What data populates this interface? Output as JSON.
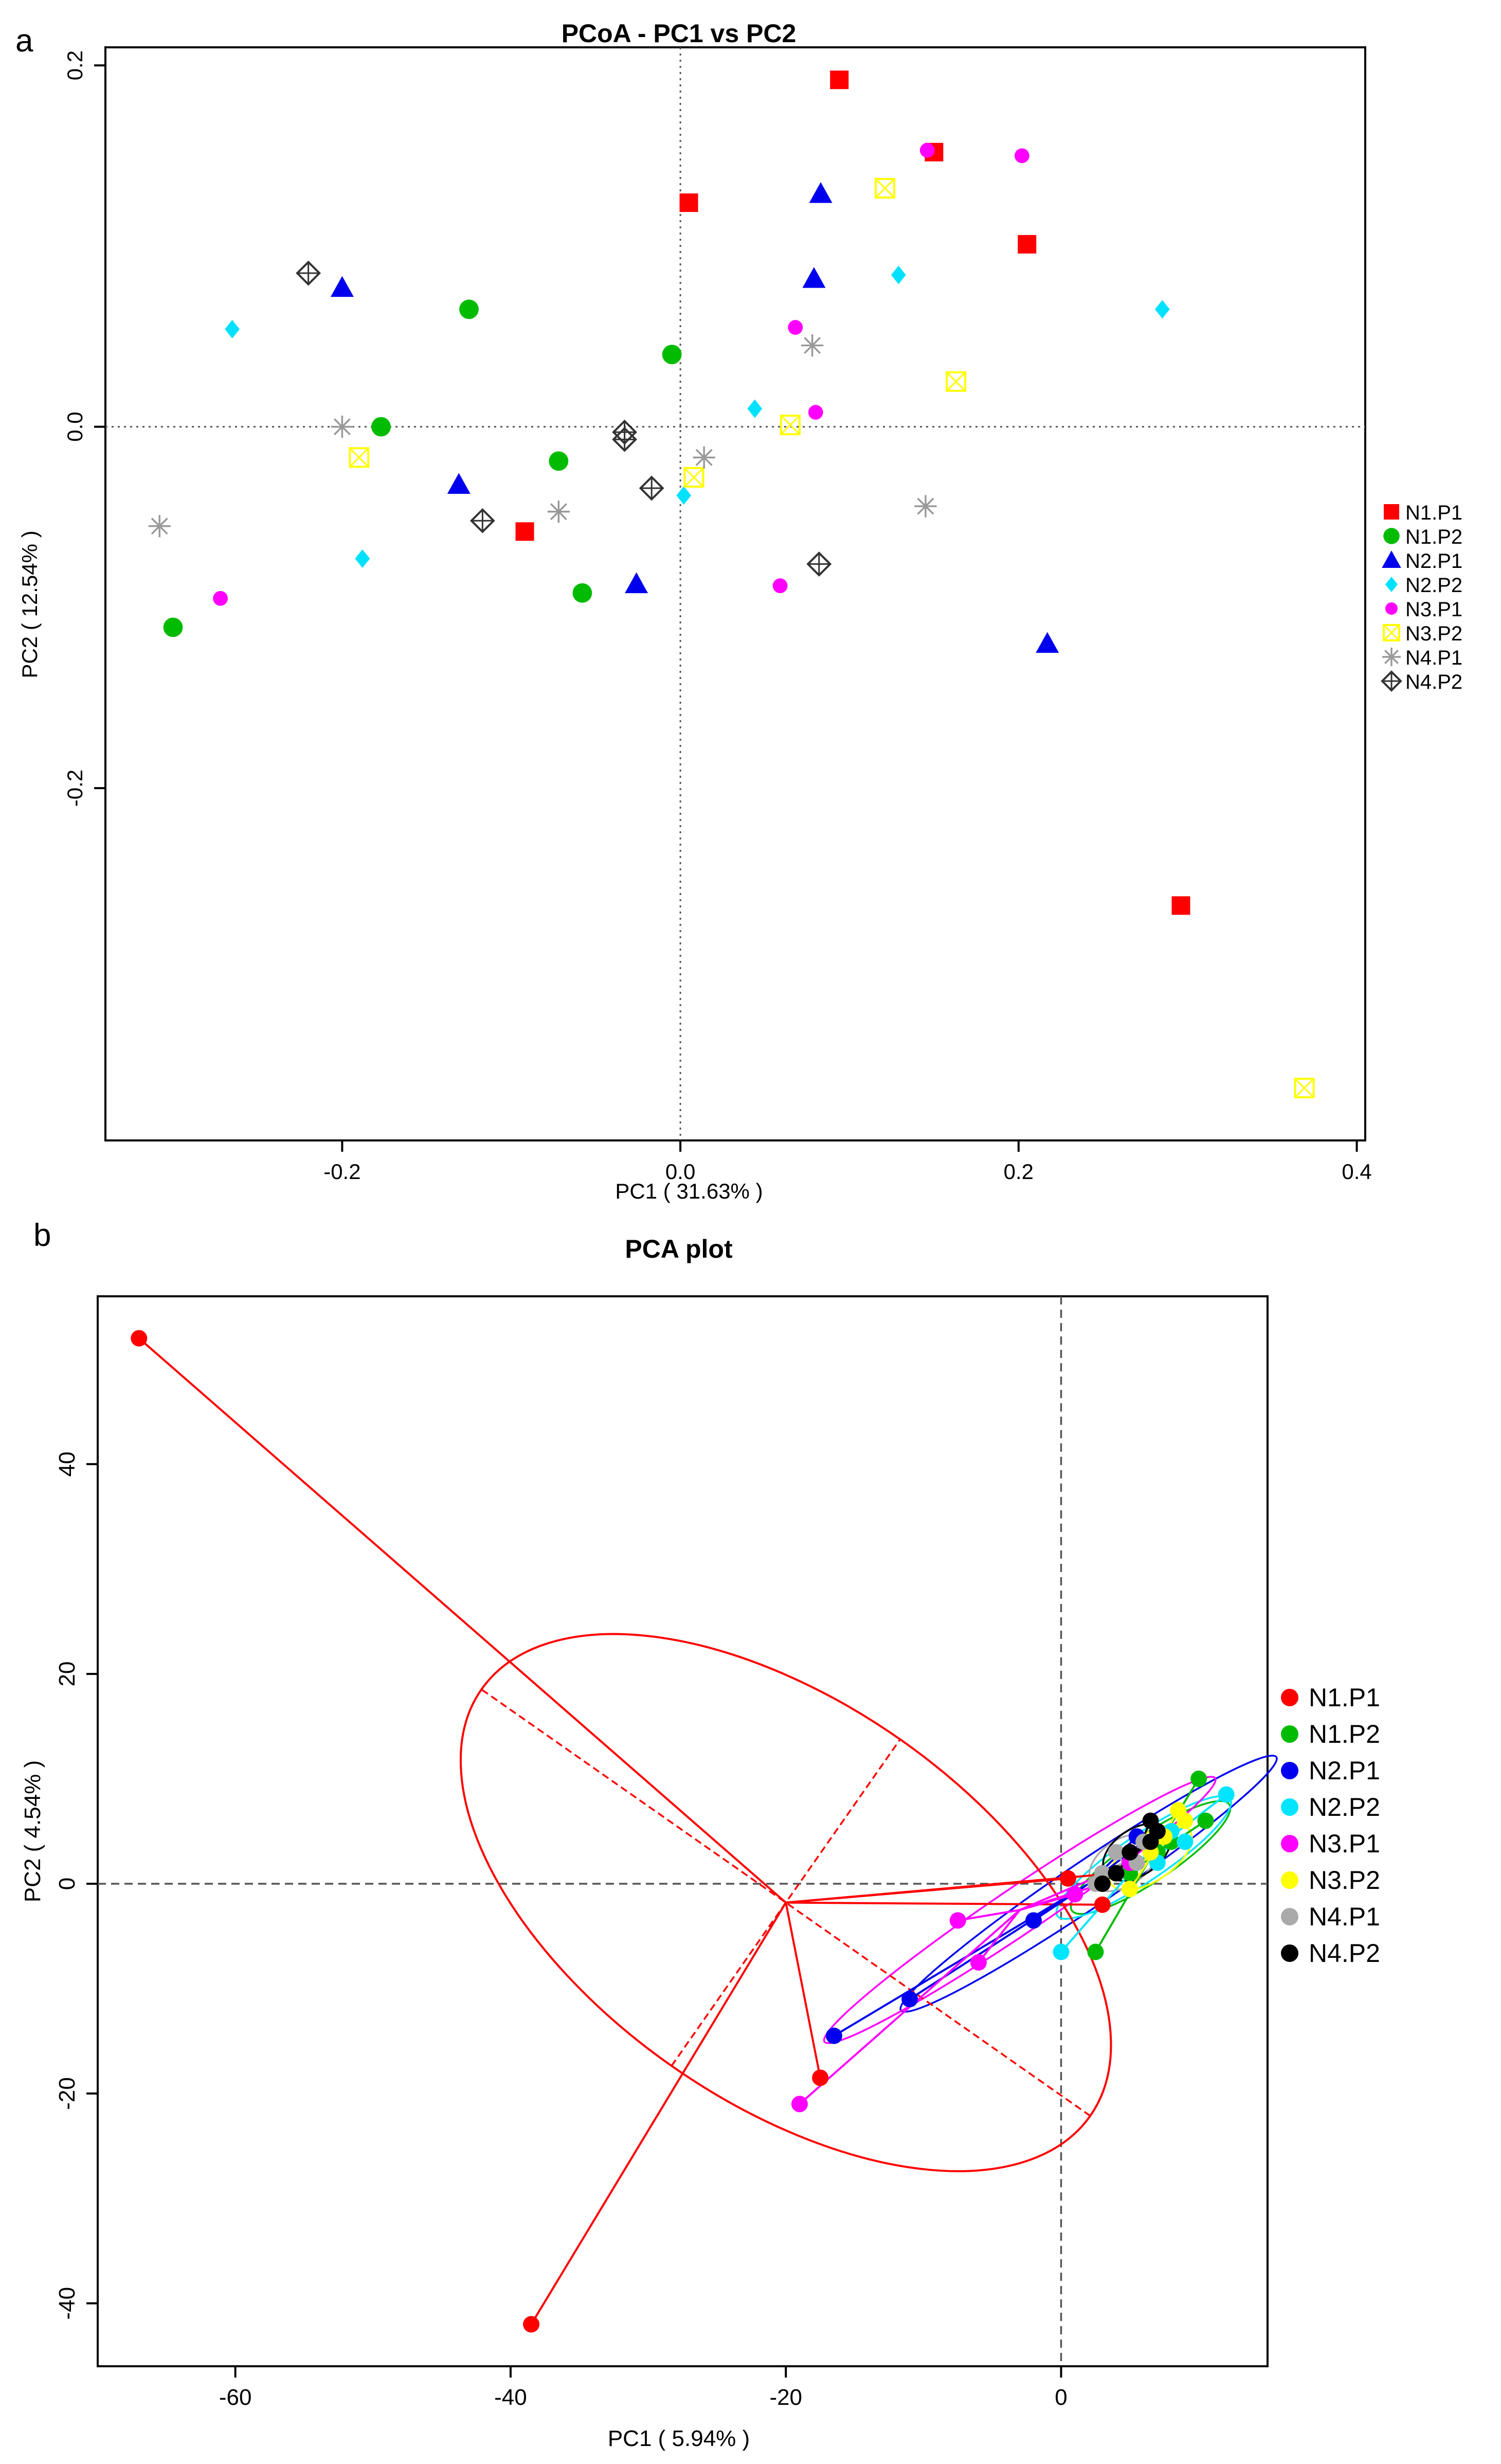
{
  "panels": {
    "a": {
      "letter": "a"
    },
    "b": {
      "letter": "b"
    }
  },
  "chart_data": [
    {
      "id": "a",
      "type": "scatter",
      "title": "PCoA - PC1 vs PC2",
      "xlabel": "PC1 ( 31.63% )",
      "ylabel": "PC2 ( 12.54% )",
      "xlim": [
        -0.34,
        0.405
      ],
      "ylim": [
        -0.395,
        0.21
      ],
      "x_ticks": [
        -0.2,
        0.0,
        0.2,
        0.4
      ],
      "x_tick_labels": [
        "-0.2",
        "0.0",
        "0.2",
        "0.4"
      ],
      "y_ticks": [
        -0.2,
        0.0,
        0.2
      ],
      "y_tick_labels": [
        "-0.2",
        "0.0",
        "0.2"
      ],
      "reference_lines": {
        "x": 0,
        "y": 0,
        "style": "dotted"
      },
      "legend_position": "right",
      "series": [
        {
          "name": "N1.P1",
          "marker": "square",
          "color": "#ff0000",
          "points": [
            [
              0.094,
              0.192
            ],
            [
              0.005,
              0.124
            ],
            [
              0.15,
              0.152
            ],
            [
              0.205,
              0.101
            ],
            [
              -0.092,
              -0.058
            ],
            [
              0.296,
              -0.265
            ]
          ]
        },
        {
          "name": "N1.P2",
          "marker": "circle",
          "color": "#00bb00",
          "points": [
            [
              -0.125,
              0.065
            ],
            [
              -0.177,
              0.0
            ],
            [
              -0.005,
              0.04
            ],
            [
              -0.072,
              -0.019
            ],
            [
              -0.058,
              -0.092
            ],
            [
              -0.3,
              -0.111
            ]
          ]
        },
        {
          "name": "N2.P1",
          "marker": "triangle",
          "color": "#0000ee",
          "points": [
            [
              0.083,
              0.129
            ],
            [
              0.079,
              0.082
            ],
            [
              -0.2,
              0.077
            ],
            [
              -0.131,
              -0.032
            ],
            [
              -0.026,
              -0.087
            ],
            [
              0.217,
              -0.12
            ]
          ]
        },
        {
          "name": "N2.P2",
          "marker": "diamond",
          "color": "#00e0ff",
          "points": [
            [
              0.129,
              0.084
            ],
            [
              0.285,
              0.065
            ],
            [
              -0.265,
              0.054
            ],
            [
              0.044,
              0.01
            ],
            [
              0.002,
              -0.038
            ],
            [
              -0.188,
              -0.073
            ]
          ]
        },
        {
          "name": "N3.P1",
          "marker": "smallcircle",
          "color": "#ff00ff",
          "points": [
            [
              0.146,
              0.153
            ],
            [
              0.202,
              0.15
            ],
            [
              0.068,
              0.055
            ],
            [
              0.08,
              0.008
            ],
            [
              0.059,
              -0.088
            ],
            [
              -0.272,
              -0.095
            ]
          ]
        },
        {
          "name": "N3.P2",
          "marker": "boxx",
          "color": "#ffff00",
          "points": [
            [
              0.121,
              0.132
            ],
            [
              0.163,
              0.025
            ],
            [
              0.065,
              0.001
            ],
            [
              0.008,
              -0.028
            ],
            [
              -0.19,
              -0.017
            ],
            [
              0.369,
              -0.366
            ]
          ]
        },
        {
          "name": "N4.P1",
          "marker": "asterisk",
          "color": "#999999",
          "points": [
            [
              0.078,
              0.045
            ],
            [
              -0.2,
              0.0
            ],
            [
              0.014,
              -0.017
            ],
            [
              -0.072,
              -0.047
            ],
            [
              0.145,
              -0.044
            ],
            [
              -0.308,
              -0.055
            ]
          ]
        },
        {
          "name": "N4.P2",
          "marker": "diamondplus",
          "color": "#333333",
          "points": [
            [
              -0.22,
              0.085
            ],
            [
              -0.033,
              -0.003
            ],
            [
              -0.033,
              -0.007
            ],
            [
              -0.017,
              -0.034
            ],
            [
              -0.117,
              -0.052
            ],
            [
              0.082,
              -0.076
            ]
          ]
        }
      ]
    },
    {
      "id": "b",
      "type": "scatter",
      "title": "PCA plot",
      "xlabel": "PC1 ( 5.94% )",
      "ylabel": "PC2 ( 4.54% )",
      "xlim": [
        -70,
        15
      ],
      "ylim": [
        -46,
        56
      ],
      "x_ticks": [
        -60,
        -40,
        -20,
        0
      ],
      "x_tick_labels": [
        "-60",
        "-40",
        "-20",
        "0"
      ],
      "y_ticks": [
        -40,
        -20,
        0,
        20,
        40
      ],
      "y_tick_labels": [
        "-40",
        "-20",
        "0",
        "20",
        "40"
      ],
      "reference_lines": {
        "x": 0,
        "y": 0,
        "style": "dashed"
      },
      "legend_position": "right",
      "series": [
        {
          "name": "N1.P1",
          "color": "#ff0000",
          "centroid": [
            -20,
            -1.8
          ],
          "points": [
            [
              -67,
              52
            ],
            [
              -38.5,
              -42
            ],
            [
              -17.5,
              -18.5
            ],
            [
              0.5,
              0.5
            ],
            [
              4,
              1
            ],
            [
              3,
              -2
            ]
          ]
        },
        {
          "name": "N1.P2",
          "color": "#00bb00",
          "centroid": [
            6.5,
            2.5
          ],
          "points": [
            [
              10,
              10
            ],
            [
              10.5,
              6
            ],
            [
              2.5,
              -6.5
            ],
            [
              7,
              3
            ],
            [
              8,
              4
            ],
            [
              5,
              1
            ]
          ]
        },
        {
          "name": "N2.P1",
          "color": "#0000ee",
          "centroid": [
            2,
            0
          ],
          "points": [
            [
              -16.5,
              -14.5
            ],
            [
              -11,
              -11
            ],
            [
              -2,
              -3.5
            ],
            [
              5.5,
              4.5
            ],
            [
              7,
              5
            ],
            [
              3,
              1
            ]
          ]
        },
        {
          "name": "N2.P2",
          "color": "#00e5ff",
          "centroid": [
            6,
            2.5
          ],
          "points": [
            [
              12,
              8.5
            ],
            [
              0,
              -6.5
            ],
            [
              7,
              2
            ],
            [
              8,
              5
            ],
            [
              4,
              1
            ],
            [
              9,
              4
            ]
          ]
        },
        {
          "name": "N3.P1",
          "color": "#ff00ff",
          "centroid": [
            -3,
            -2.5
          ],
          "points": [
            [
              -19,
              -21
            ],
            [
              -7.5,
              -3.5
            ],
            [
              -6,
              -7.5
            ],
            [
              3,
              0
            ],
            [
              5,
              2
            ],
            [
              1,
              -1
            ]
          ]
        },
        {
          "name": "N3.P2",
          "color": "#ffff00",
          "centroid": [
            6.5,
            2.5
          ],
          "points": [
            [
              8.5,
              7
            ],
            [
              5,
              -0.5
            ],
            [
              6.5,
              3
            ],
            [
              7.5,
              4.5
            ],
            [
              4,
              1
            ],
            [
              9,
              6
            ]
          ]
        },
        {
          "name": "N4.P1",
          "color": "#aaaaaa",
          "centroid": [
            4.5,
            2
          ],
          "points": [
            [
              4,
              3
            ],
            [
              5.5,
              2
            ],
            [
              3,
              1
            ],
            [
              6,
              4
            ],
            [
              2.5,
              0
            ],
            [
              7,
              5
            ]
          ]
        },
        {
          "name": "N4.P2",
          "color": "#000000",
          "centroid": [
            5.5,
            3
          ],
          "points": [
            [
              6.5,
              6
            ],
            [
              6.5,
              4
            ],
            [
              5,
              3
            ],
            [
              4,
              1
            ],
            [
              7,
              5
            ],
            [
              3,
              0
            ]
          ]
        }
      ],
      "ellipse": {
        "series": "N1.P1",
        "center": [
          -20,
          -1.8
        ],
        "rx": 27,
        "ry": 19,
        "angle_deg": 145
      }
    }
  ]
}
